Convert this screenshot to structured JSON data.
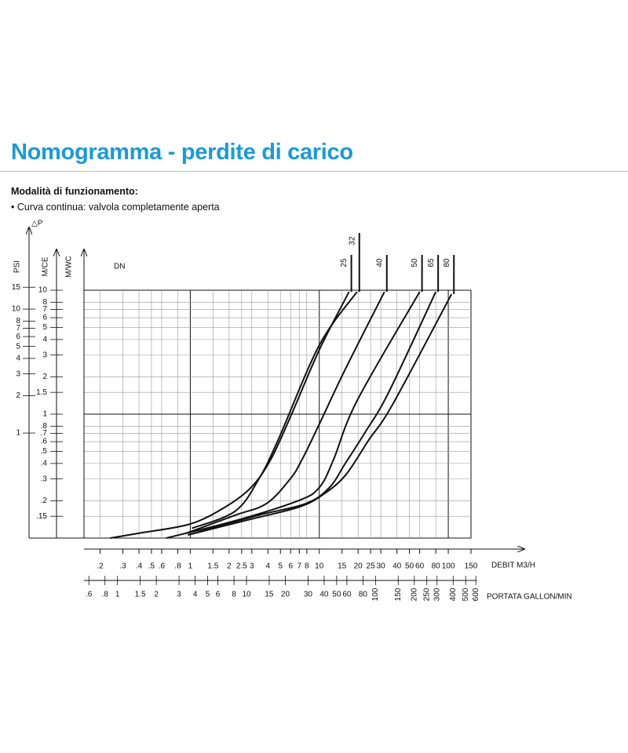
{
  "header": {
    "title": "Nomogramma - perdite di carico",
    "subtitle": "Modalità di funzionamento:",
    "note": "• Curva continua: valvola completamente aperta"
  },
  "chart_data": {
    "type": "line",
    "log_x": true,
    "log_y": true,
    "grid": true,
    "x_label": "DEBIT  M3/H",
    "x2_label": "PORTATA GALLON/MIN",
    "y_label": "M/CE",
    "y2_label": "PSI",
    "y3_label": "M/WC",
    "delta_label": "△P",
    "legend_title": "DN",
    "xlim": [
      0.15,
      150
    ],
    "xticks": [
      {
        "value": 0.2,
        "label": ".2"
      },
      {
        "value": 0.3,
        "label": ".3"
      },
      {
        "value": 0.4,
        "label": ".4"
      },
      {
        "value": 0.5,
        "label": ".5"
      },
      {
        "value": 0.6,
        "label": ".6"
      },
      {
        "value": 0.8,
        "label": ".8"
      },
      1,
      1.5,
      2,
      2.5,
      3,
      4,
      5,
      6,
      7,
      8,
      10,
      15,
      20,
      25,
      30,
      40,
      50,
      60,
      80,
      100,
      150
    ],
    "x2lim": [
      0.55,
      550
    ],
    "x2ticks": [
      {
        "value": 0.6,
        "label": ".6"
      },
      {
        "value": 0.8,
        "label": ".8"
      },
      1,
      1.5,
      2,
      3,
      4,
      5,
      6,
      8,
      10,
      15,
      20,
      30,
      40,
      50,
      60,
      80,
      100,
      150,
      200,
      250,
      300,
      400,
      500,
      600
    ],
    "ylim": [
      0.1,
      10
    ],
    "yticks": [
      {
        "value": 0.15,
        "label": ".15"
      },
      {
        "value": 0.2,
        "label": ".2"
      },
      {
        "value": 0.3,
        "label": ".3"
      },
      {
        "value": 0.4,
        "label": ".4"
      },
      {
        "value": 0.5,
        "label": ".5"
      },
      {
        "value": 0.6,
        "label": ".6"
      },
      {
        "value": 0.7,
        "label": ".7"
      },
      {
        "value": 0.8,
        "label": ".8"
      },
      1,
      1.5,
      2,
      3,
      4,
      5,
      6,
      7,
      8,
      10
    ],
    "y2lim": [
      0.142,
      14.2
    ],
    "y2ticks": [
      1,
      2,
      3,
      4,
      5,
      6,
      7,
      8,
      10,
      15
    ],
    "series": [
      {
        "name": "25",
        "color": "#111111",
        "x": [
          0.24,
          0.41,
          1,
          1.9,
          3,
          4.2,
          6,
          10,
          17
        ],
        "values": [
          0.1,
          0.11,
          0.13,
          0.18,
          0.26,
          0.43,
          0.96,
          3.3,
          9.7
        ]
      },
      {
        "name": "32",
        "color": "#111111",
        "x": [
          1.03,
          2.23,
          3.4,
          4.8,
          10,
          19.6
        ],
        "values": [
          0.12,
          0.165,
          0.3,
          0.62,
          3.6,
          9.7
        ]
      },
      {
        "name": "40",
        "color": "#111111",
        "x": [
          0.92,
          2.23,
          3.9,
          5.95,
          7.35,
          10,
          15.9,
          32
        ],
        "values": [
          0.109,
          0.153,
          0.19,
          0.3,
          0.43,
          0.83,
          2.3,
          9.7
        ]
      },
      {
        "name": "50",
        "color": "#111111",
        "x": [
          0.65,
          2.23,
          6.85,
          10,
          12.9,
          19.6,
          60
        ],
        "values": [
          0.1,
          0.138,
          0.2,
          0.256,
          0.43,
          1.28,
          9.7
        ]
      },
      {
        "name": "65",
        "color": "#111111",
        "x": [
          0.96,
          3.4,
          7.9,
          12,
          15.9,
          22.6,
          34.4,
          80
        ],
        "values": [
          0.106,
          0.153,
          0.19,
          0.256,
          0.4,
          0.71,
          1.49,
          9.7
        ]
      },
      {
        "name": "80",
        "color": "#111111",
        "x": [
          0.96,
          2.95,
          6.85,
          10.4,
          15.9,
          24.2,
          36.9,
          106
        ],
        "values": [
          0.106,
          0.142,
          0.177,
          0.22,
          0.32,
          0.62,
          1.19,
          9.3
        ]
      }
    ]
  }
}
